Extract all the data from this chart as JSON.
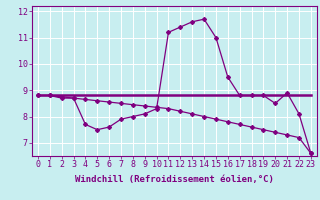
{
  "xlabel": "Windchill (Refroidissement éolien,°C)",
  "background_color": "#c8eef0",
  "line_color": "#800080",
  "grid_color": "#ffffff",
  "xlim": [
    -0.5,
    23.5
  ],
  "ylim": [
    6.5,
    12.2
  ],
  "xticks": [
    0,
    1,
    2,
    3,
    4,
    5,
    6,
    7,
    8,
    9,
    10,
    11,
    12,
    13,
    14,
    15,
    16,
    17,
    18,
    19,
    20,
    21,
    22,
    23
  ],
  "yticks": [
    7,
    8,
    9,
    10,
    11,
    12
  ],
  "series1": [
    8.8,
    8.8,
    8.7,
    8.7,
    7.7,
    7.5,
    7.6,
    7.9,
    8.0,
    8.1,
    8.3,
    11.2,
    11.4,
    11.6,
    11.7,
    11.0,
    9.5,
    8.8,
    8.8,
    8.8,
    8.5,
    8.9,
    8.1,
    6.6
  ],
  "series2": [
    8.8,
    8.8,
    8.75,
    8.7,
    8.65,
    8.6,
    8.55,
    8.5,
    8.45,
    8.4,
    8.35,
    8.3,
    8.2,
    8.1,
    8.0,
    7.9,
    7.8,
    7.7,
    7.6,
    7.5,
    7.4,
    7.3,
    7.2,
    6.6
  ],
  "series3": [
    8.8,
    8.8,
    8.8,
    8.8,
    8.8,
    8.8,
    8.8,
    8.8,
    8.8,
    8.8,
    8.8,
    8.8,
    8.8,
    8.8,
    8.8,
    8.8,
    8.8,
    8.8,
    8.8,
    8.8,
    8.8,
    8.8,
    8.8,
    8.8
  ],
  "tick_fontsize": 6,
  "label_fontsize": 6.5,
  "figwidth": 3.2,
  "figheight": 2.0,
  "dpi": 100
}
